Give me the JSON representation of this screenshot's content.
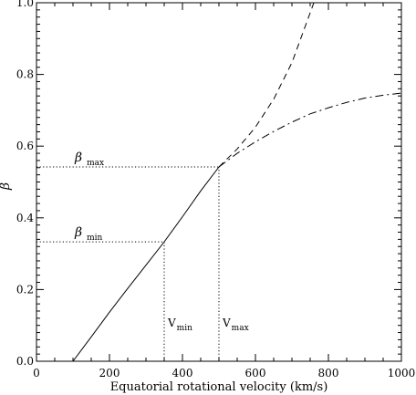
{
  "chart_data": {
    "type": "line",
    "title": "",
    "xlabel": "Equatorial rotational velocity (km/s)",
    "ylabel": "β",
    "xlim": [
      0,
      1000
    ],
    "ylim": [
      0,
      1.0
    ],
    "x_ticks": [
      "0",
      "200",
      "400",
      "600",
      "800",
      "1000"
    ],
    "y_ticks": [
      "0.0",
      "0.2",
      "0.4",
      "0.6",
      "0.8",
      "1.0"
    ],
    "grid": false,
    "series": [
      {
        "style": "solid",
        "x": [
          100,
          150,
          200,
          250,
          300,
          350,
          400,
          450,
          500
        ],
        "y": [
          0.0,
          0.068,
          0.137,
          0.203,
          0.268,
          0.333,
          0.403,
          0.475,
          0.542
        ]
      },
      {
        "style": "dashed",
        "x": [
          500,
          550,
          600,
          650,
          700,
          750,
          760
        ],
        "y": [
          0.542,
          0.592,
          0.653,
          0.731,
          0.833,
          0.972,
          1.0
        ]
      },
      {
        "style": "dash-dot",
        "x": [
          500,
          550,
          600,
          650,
          700,
          750,
          800,
          850,
          900,
          950,
          1000
        ],
        "y": [
          0.542,
          0.58,
          0.612,
          0.641,
          0.667,
          0.69,
          0.707,
          0.722,
          0.734,
          0.742,
          0.748
        ]
      }
    ],
    "annotations": [
      {
        "main": "β",
        "sub": "max",
        "y": 0.542,
        "x": 500,
        "kind": "beta"
      },
      {
        "main": "β",
        "sub": "min",
        "y": 0.333,
        "x": 350,
        "kind": "beta"
      },
      {
        "main": "V",
        "sub": "min",
        "x": 350,
        "y": 0.333,
        "kind": "v"
      },
      {
        "main": "V",
        "sub": "max",
        "x": 500,
        "y": 0.542,
        "kind": "v"
      }
    ]
  }
}
